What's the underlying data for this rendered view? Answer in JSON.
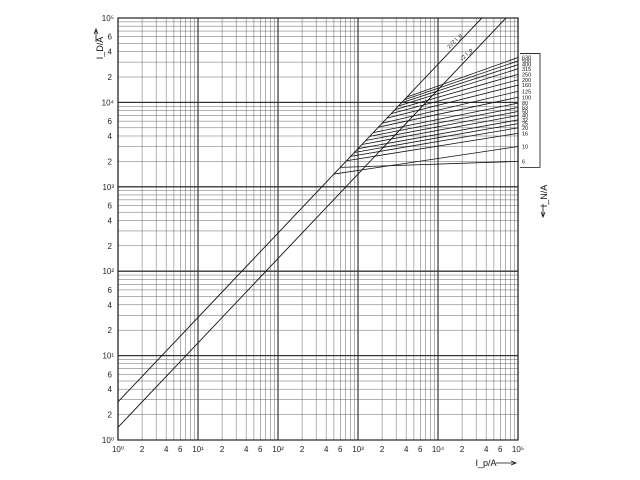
{
  "chart_data": {
    "type": "line",
    "title": "",
    "xlabel": "I_p/A",
    "ylabel": "I_D/A",
    "rlabel": "I_N/A",
    "x_scale": "log",
    "y_scale": "log",
    "xlim": [
      1,
      100000
    ],
    "ylim": [
      1,
      100000
    ],
    "grid": true,
    "decade_labels": [
      "10⁰",
      "10¹",
      "10²",
      "10³",
      "10⁴",
      "10⁵"
    ],
    "minor_labels": [
      "2",
      "4",
      "6"
    ],
    "y_minor_labels": [
      "2",
      "4",
      "6"
    ],
    "reference_lines": [
      {
        "name": "2√2 I_p",
        "factor": 2.83
      },
      {
        "name": "√2 I_p",
        "factor": 1.414
      }
    ],
    "series": [
      {
        "name": "6",
        "knee_x": 600,
        "y_end": 2000
      },
      {
        "name": "10",
        "knee_x": 500,
        "y_end": 3000
      },
      {
        "name": "16",
        "knee_x": 720,
        "y_end": 4300
      },
      {
        "name": "20",
        "knee_x": 810,
        "y_end": 5000
      },
      {
        "name": "25",
        "knee_x": 900,
        "y_end": 5600
      },
      {
        "name": "32",
        "knee_x": 1000,
        "y_end": 6200
      },
      {
        "name": "40",
        "knee_x": 1120,
        "y_end": 7000
      },
      {
        "name": "50",
        "knee_x": 1250,
        "y_end": 7800
      },
      {
        "name": "63",
        "knee_x": 1400,
        "y_end": 8700
      },
      {
        "name": "80",
        "knee_x": 1550,
        "y_end": 9800
      },
      {
        "name": "100",
        "knee_x": 1800,
        "y_end": 11500
      },
      {
        "name": "125",
        "knee_x": 2000,
        "y_end": 13500
      },
      {
        "name": "160",
        "knee_x": 2300,
        "y_end": 16000
      },
      {
        "name": "200",
        "knee_x": 2600,
        "y_end": 18500
      },
      {
        "name": "250",
        "knee_x": 2900,
        "y_end": 21500
      },
      {
        "name": "315",
        "knee_x": 3200,
        "y_end": 25000
      },
      {
        "name": "400",
        "knee_x": 3500,
        "y_end": 28000
      },
      {
        "name": "500",
        "knee_x": 3800,
        "y_end": 31000
      },
      {
        "name": "630",
        "knee_x": 4100,
        "y_end": 34000
      }
    ]
  }
}
